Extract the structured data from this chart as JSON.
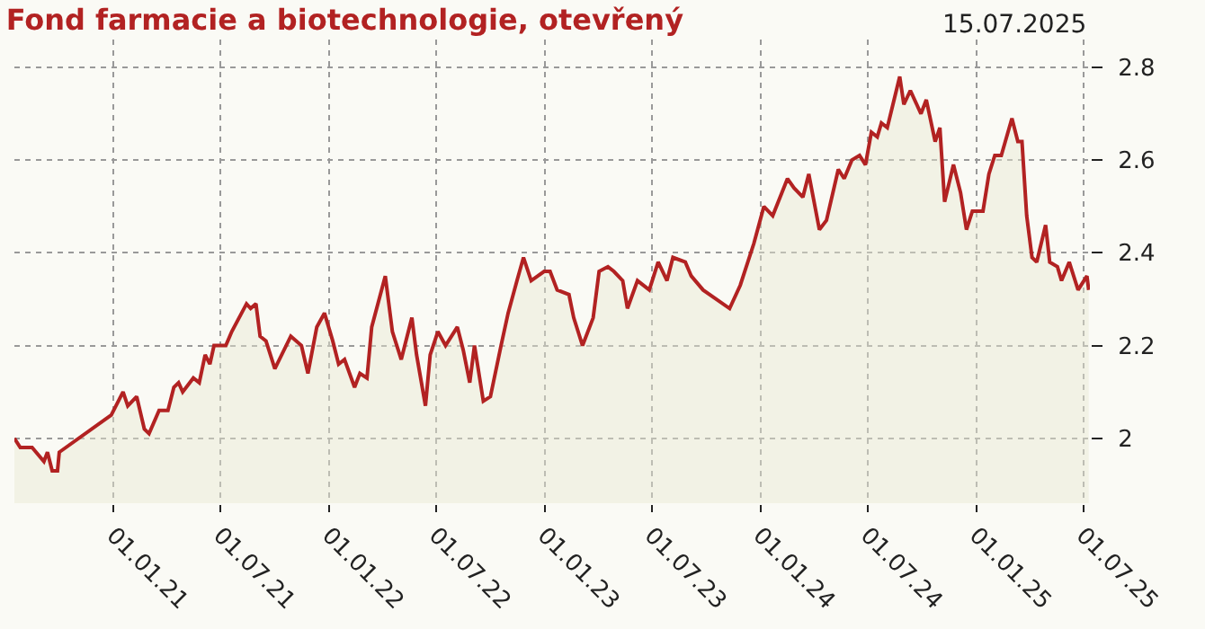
{
  "chart_data": {
    "type": "area",
    "title": "Fond farmacie a biotechnologie, otevřený",
    "annotations": [
      "15.07.2025"
    ],
    "x": [
      "2020-07-17",
      "2020-07-27",
      "2020-08-16",
      "2020-09-05",
      "2020-09-11",
      "2020-09-19",
      "2020-09-28",
      "2020-10-01",
      "2020-12-28",
      "2021-01-17",
      "2021-01-25",
      "2021-02-09",
      "2021-02-22",
      "2021-03-02",
      "2021-03-19",
      "2021-04-03",
      "2021-04-13",
      "2021-04-21",
      "2021-04-28",
      "2021-05-16",
      "2021-05-26",
      "2021-06-05",
      "2021-06-13",
      "2021-06-20",
      "2021-07-10",
      "2021-07-20",
      "2021-08-14",
      "2021-08-21",
      "2021-08-30",
      "2021-09-06",
      "2021-09-16",
      "2021-10-01",
      "2021-10-28",
      "2021-11-15",
      "2021-11-26",
      "2021-12-11",
      "2021-12-24",
      "2022-01-07",
      "2022-01-17",
      "2022-01-27",
      "2022-02-13",
      "2022-02-22",
      "2022-03-06",
      "2022-03-14",
      "2022-04-06",
      "2022-04-18",
      "2022-05-03",
      "2022-05-21",
      "2022-05-29",
      "2022-06-13",
      "2022-06-21",
      "2022-07-04",
      "2022-07-17",
      "2022-08-06",
      "2022-08-16",
      "2022-08-27",
      "2022-09-04",
      "2022-09-19",
      "2022-10-01",
      "2022-10-19",
      "2022-10-31",
      "2022-11-15",
      "2022-11-26",
      "2022-12-09",
      "2022-12-31",
      "2023-01-10",
      "2023-01-22",
      "2023-02-11",
      "2023-02-19",
      "2023-03-06",
      "2023-03-24",
      "2023-04-03",
      "2023-04-18",
      "2023-04-28",
      "2023-05-13",
      "2023-05-21",
      "2023-06-07",
      "2023-06-27",
      "2023-07-12",
      "2023-07-27",
      "2023-08-06",
      "2023-08-27",
      "2023-09-06",
      "2023-09-26",
      "2023-11-10",
      "2023-11-28",
      "2023-12-21",
      "2024-01-07",
      "2024-01-22",
      "2024-02-16",
      "2024-02-27",
      "2024-03-13",
      "2024-03-23",
      "2024-04-10",
      "2024-04-22",
      "2024-05-12",
      "2024-05-22",
      "2024-06-04",
      "2024-06-17",
      "2024-06-27",
      "2024-07-07",
      "2024-07-17",
      "2024-07-24",
      "2024-08-03",
      "2024-08-24",
      "2024-08-31",
      "2024-09-11",
      "2024-09-29",
      "2024-10-08",
      "2024-10-23",
      "2024-10-31",
      "2024-11-08",
      "2024-11-23",
      "2024-12-05",
      "2024-12-15",
      "2024-12-25",
      "2025-01-12",
      "2025-01-22",
      "2025-02-01",
      "2025-02-12",
      "2025-03-02",
      "2025-03-12",
      "2025-03-19",
      "2025-03-27",
      "2025-04-05",
      "2025-04-13",
      "2025-04-28",
      "2025-05-05",
      "2025-05-18",
      "2025-05-25",
      "2025-06-07",
      "2025-06-22",
      "2025-07-07",
      "2025-07-10"
    ],
    "series": [
      {
        "color": "#b22222",
        "values": [
          2.0,
          1.98,
          1.98,
          1.95,
          1.97,
          1.93,
          1.93,
          1.97,
          2.05,
          2.1,
          2.07,
          2.09,
          2.02,
          2.01,
          2.06,
          2.06,
          2.11,
          2.12,
          2.1,
          2.13,
          2.12,
          2.18,
          2.16,
          2.2,
          2.2,
          2.23,
          2.29,
          2.28,
          2.29,
          2.22,
          2.21,
          2.15,
          2.22,
          2.2,
          2.14,
          2.24,
          2.27,
          2.21,
          2.16,
          2.17,
          2.11,
          2.14,
          2.13,
          2.24,
          2.35,
          2.23,
          2.17,
          2.26,
          2.18,
          2.07,
          2.18,
          2.23,
          2.2,
          2.24,
          2.19,
          2.12,
          2.2,
          2.08,
          2.09,
          2.2,
          2.27,
          2.34,
          2.39,
          2.34,
          2.36,
          2.36,
          2.32,
          2.31,
          2.26,
          2.2,
          2.26,
          2.36,
          2.37,
          2.36,
          2.34,
          2.28,
          2.34,
          2.32,
          2.38,
          2.34,
          2.39,
          2.38,
          2.35,
          2.32,
          2.28,
          2.33,
          2.42,
          2.5,
          2.48,
          2.56,
          2.54,
          2.52,
          2.57,
          2.45,
          2.47,
          2.58,
          2.56,
          2.6,
          2.61,
          2.59,
          2.66,
          2.65,
          2.68,
          2.67,
          2.78,
          2.72,
          2.75,
          2.7,
          2.73,
          2.64,
          2.67,
          2.51,
          2.59,
          2.53,
          2.45,
          2.49,
          2.49,
          2.57,
          2.61,
          2.61,
          2.69,
          2.64,
          2.64,
          2.48,
          2.39,
          2.38,
          2.46,
          2.38,
          2.37,
          2.34,
          2.38,
          2.32,
          2.35,
          2.32
        ]
      }
    ],
    "xlim": [
      "2020-07-17",
      "2025-07-12"
    ],
    "xticks": [
      {
        "value": "2021-01-01",
        "label": "01.01.21"
      },
      {
        "value": "2021-07-01",
        "label": "01.07.21"
      },
      {
        "value": "2022-01-01",
        "label": "01.01.22"
      },
      {
        "value": "2022-07-01",
        "label": "01.07.22"
      },
      {
        "value": "2023-01-01",
        "label": "01.01.23"
      },
      {
        "value": "2023-07-01",
        "label": "01.07.23"
      },
      {
        "value": "2024-01-01",
        "label": "01.01.24"
      },
      {
        "value": "2024-07-01",
        "label": "01.07.24"
      },
      {
        "value": "2025-01-01",
        "label": "01.01.25"
      },
      {
        "value": "2025-07-01",
        "label": "01.07.25"
      }
    ],
    "ylim": [
      1.86,
      2.86
    ],
    "yticks": [
      {
        "value": 2.0,
        "label": "2"
      },
      2.2,
      2.4,
      2.6,
      2.8
    ],
    "grid": true,
    "marker": "none",
    "line_style": "solid"
  }
}
